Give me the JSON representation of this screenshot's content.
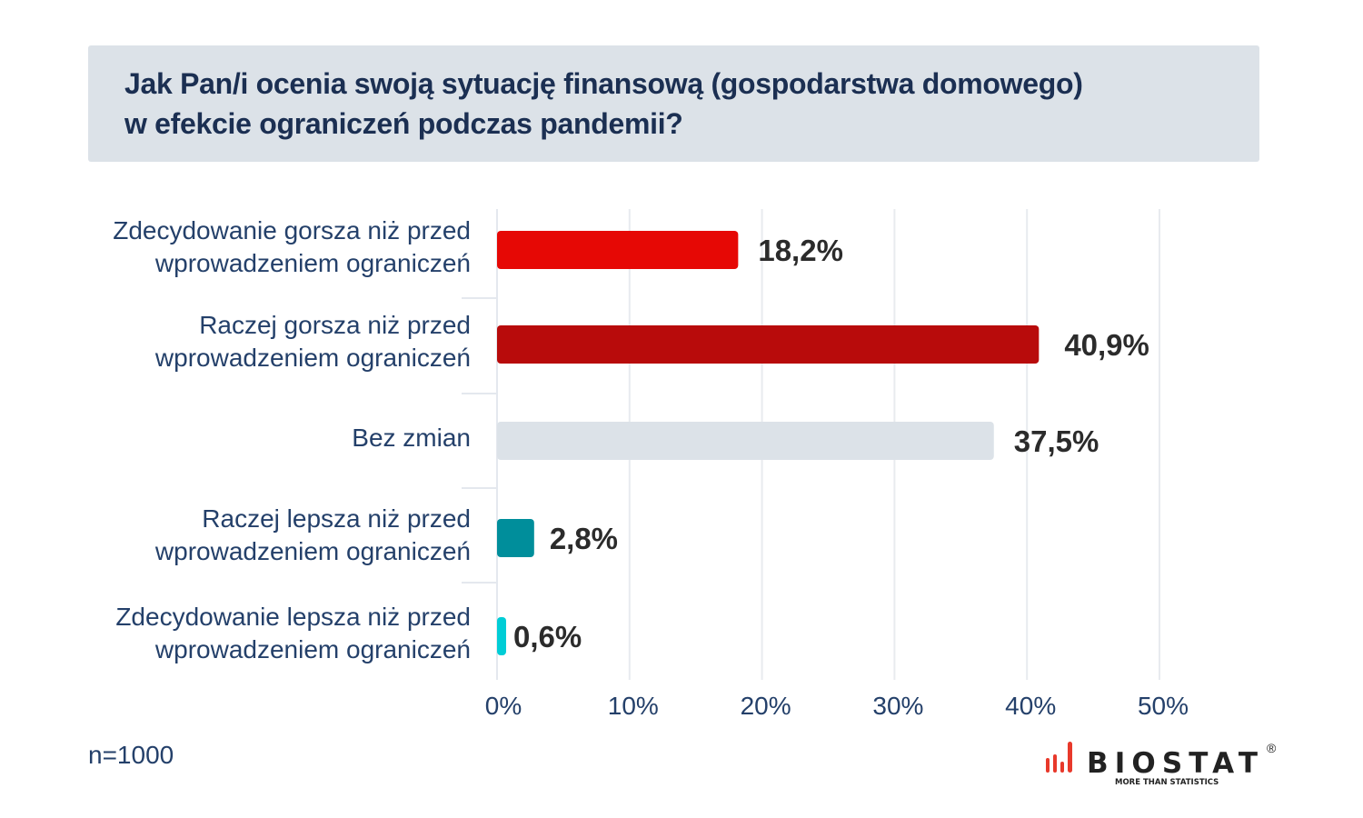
{
  "chart_data": {
    "type": "bar",
    "orientation": "horizontal",
    "title": "Jak Pan/i ocenia swoją sytuację finansową (gospodarstwa domowego) w efekcie ograniczeń podczas pandemii?",
    "title_lines": [
      "Jak Pan/i ocenia swoją sytuację finansową (gospodarstwa domowego)",
      "w efekcie ograniczeń podczas pandemii?"
    ],
    "categories": [
      [
        "Zdecydowanie gorsza niż przed",
        "wprowadzeniem ograniczeń"
      ],
      [
        "Raczej gorsza niż przed",
        "wprowadzeniem ograniczeń"
      ],
      [
        "Bez zmian"
      ],
      [
        "Raczej lepsza niż przed",
        "wprowadzeniem ograniczeń"
      ],
      [
        "Zdecydowanie lepsza niż przed",
        "wprowadzeniem ograniczeń"
      ]
    ],
    "values": [
      18.2,
      40.9,
      37.5,
      2.8,
      0.6
    ],
    "data_labels": [
      "18,2%",
      "40,9%",
      "37,5%",
      "2,8%",
      "0,6%"
    ],
    "colors": [
      "#e60805",
      "#b80b0b",
      "#dce2e8",
      "#008e9b",
      "#00cdd6"
    ],
    "xlim": [
      0,
      50
    ],
    "xticks": [
      "0%",
      "10%",
      "20%",
      "30%",
      "40%",
      "50%"
    ],
    "grid": true,
    "note": "n=1000"
  },
  "logo": {
    "name": "BIOSTAT",
    "tagline": "MORE THAN STATISTICS",
    "mark": "®"
  }
}
